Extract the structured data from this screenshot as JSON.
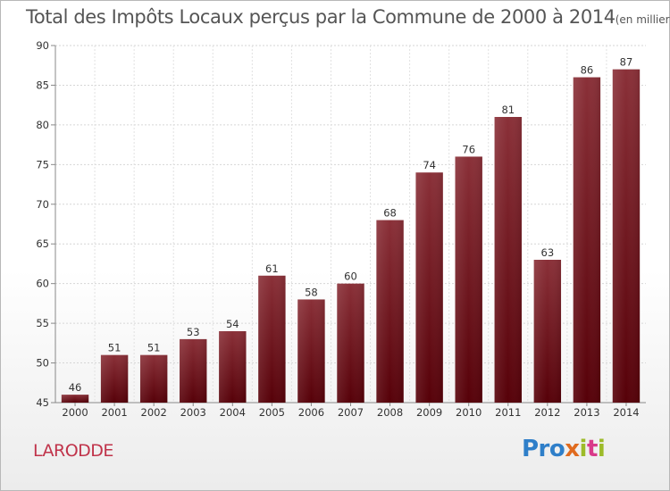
{
  "chart_data": {
    "type": "bar",
    "title": "Total des Impôts Locaux perçus par la Commune de 2000 à 2014",
    "subtitle": "(en milliers d'€)",
    "categories": [
      "2000",
      "2001",
      "2002",
      "2003",
      "2004",
      "2005",
      "2006",
      "2007",
      "2008",
      "2009",
      "2010",
      "2011",
      "2012",
      "2013",
      "2014"
    ],
    "values": [
      46,
      51,
      51,
      53,
      54,
      61,
      58,
      60,
      68,
      74,
      76,
      81,
      63,
      86,
      87
    ],
    "ylim": [
      45,
      90
    ],
    "yticks": [
      45,
      50,
      55,
      60,
      65,
      70,
      75,
      80,
      85,
      90
    ],
    "xlabel": "",
    "ylabel": "",
    "grid": true,
    "bar_color": "#7a1a26"
  },
  "commune_name": "LARODDE",
  "brand": "Proxiti"
}
